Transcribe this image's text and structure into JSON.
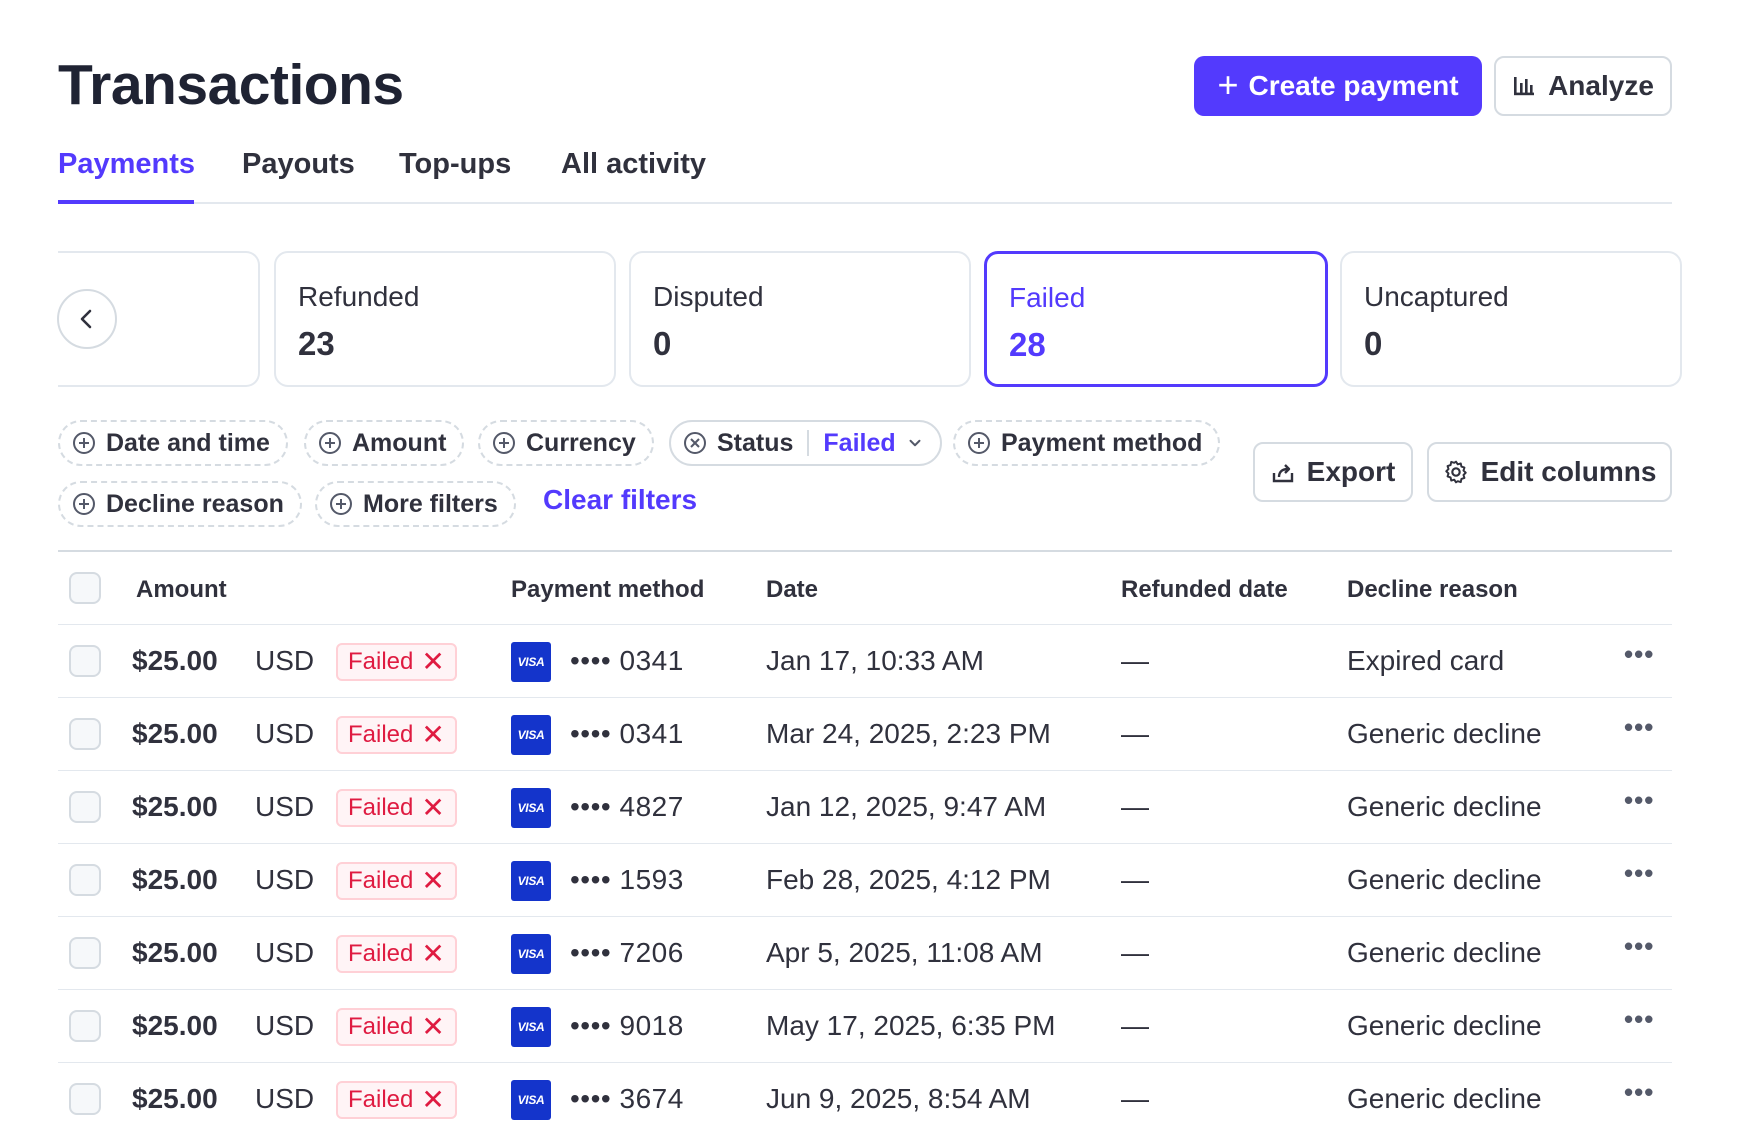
{
  "header": {
    "title": "Transactions",
    "create_label": "Create payment",
    "analyze_label": "Analyze"
  },
  "tabs": [
    {
      "label": "Payments",
      "active": true
    },
    {
      "label": "Payouts"
    },
    {
      "label": "Top-ups"
    },
    {
      "label": "All activity"
    }
  ],
  "status_cards": [
    {
      "label": "Refunded",
      "count": "23"
    },
    {
      "label": "Disputed",
      "count": "0"
    },
    {
      "label": "Failed",
      "count": "28",
      "selected": true
    },
    {
      "label": "Uncaptured",
      "count": "0"
    }
  ],
  "filters": {
    "date_and_time": "Date and time",
    "amount": "Amount",
    "currency": "Currency",
    "status": "Status",
    "status_value": "Failed",
    "payment_method": "Payment method",
    "decline_reason": "Decline reason",
    "more_filters": "More filters",
    "clear_filters": "Clear filters"
  },
  "actions": {
    "export_label": "Export",
    "edit_columns_label": "Edit columns"
  },
  "table": {
    "columns": {
      "amount": "Amount",
      "payment_method": "Payment method",
      "date": "Date",
      "refunded_date": "Refunded date",
      "decline_reason": "Decline reason"
    },
    "rows": [
      {
        "amount": "$25.00",
        "currency": "USD",
        "status": "Failed",
        "card_brand": "VISA",
        "last4": "•••• 0341",
        "date": "Jan 17, 10:33 AM",
        "refunded_date": "—",
        "decline_reason": "Expired card"
      },
      {
        "amount": "$25.00",
        "currency": "USD",
        "status": "Failed",
        "card_brand": "VISA",
        "last4": "•••• 0341",
        "date": "Mar 24, 2025, 2:23 PM",
        "refunded_date": "—",
        "decline_reason": "Generic decline"
      },
      {
        "amount": "$25.00",
        "currency": "USD",
        "status": "Failed",
        "card_brand": "VISA",
        "last4": "•••• 4827",
        "date": "Jan 12, 2025, 9:47 AM",
        "refunded_date": "—",
        "decline_reason": "Generic decline"
      },
      {
        "amount": "$25.00",
        "currency": "USD",
        "status": "Failed",
        "card_brand": "VISA",
        "last4": "•••• 1593",
        "date": "Feb 28, 2025, 4:12 PM",
        "refunded_date": "—",
        "decline_reason": "Generic decline"
      },
      {
        "amount": "$25.00",
        "currency": "USD",
        "status": "Failed",
        "card_brand": "VISA",
        "last4": "•••• 7206",
        "date": "Apr 5, 2025, 11:08 AM",
        "refunded_date": "—",
        "decline_reason": "Generic decline"
      },
      {
        "amount": "$25.00",
        "currency": "USD",
        "status": "Failed",
        "card_brand": "VISA",
        "last4": "•••• 9018",
        "date": "May 17, 2025, 6:35 PM",
        "refunded_date": "—",
        "decline_reason": "Generic decline"
      },
      {
        "amount": "$25.00",
        "currency": "USD",
        "status": "Failed",
        "card_brand": "VISA",
        "last4": "•••• 3674",
        "date": "Jun 9, 2025, 8:54 AM",
        "refunded_date": "—",
        "decline_reason": "Generic decline"
      }
    ]
  },
  "colors": {
    "accent": "#533afd",
    "danger": "#df1b41",
    "visa": "#1434cb"
  }
}
